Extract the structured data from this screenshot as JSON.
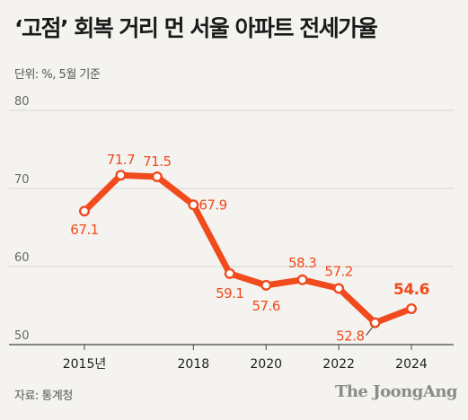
{
  "title": "‘고점’ 회복 거리 먼 서울 아파트 전세가율",
  "unit_note": "단위: %, 5월 기준",
  "source": "자료: 통계청",
  "brand": "The JoongAng",
  "colors": {
    "line": "#f04a1d",
    "marker_fill": "#ffffff",
    "grid": "#d6d6d2",
    "background": "#f4f3ef"
  },
  "chart_data": {
    "type": "line",
    "title": "‘고점’ 회복 거리 먼 서울 아파트 전세가율",
    "ylim": [
      50,
      80
    ],
    "yticks": [
      50,
      60,
      70,
      80
    ],
    "grid": true,
    "x": [
      2015,
      2016,
      2017,
      2018,
      2019,
      2020,
      2021,
      2022,
      2023,
      2024
    ],
    "xticks": [
      {
        "x": 2015,
        "label": "2015년"
      },
      {
        "x": 2018,
        "label": "2018"
      },
      {
        "x": 2020,
        "label": "2020"
      },
      {
        "x": 2022,
        "label": "2022"
      },
      {
        "x": 2024,
        "label": "2024"
      }
    ],
    "series": [
      {
        "values": [
          67.1,
          71.7,
          71.5,
          67.9,
          59.1,
          57.6,
          58.3,
          57.2,
          52.8,
          54.6
        ]
      }
    ],
    "data_labels": [
      "67.1",
      "71.7",
      "71.5",
      "67.9",
      "59.1",
      "57.6",
      "58.3",
      "57.2",
      "52.8",
      "54.6"
    ],
    "highlight_last": true
  }
}
